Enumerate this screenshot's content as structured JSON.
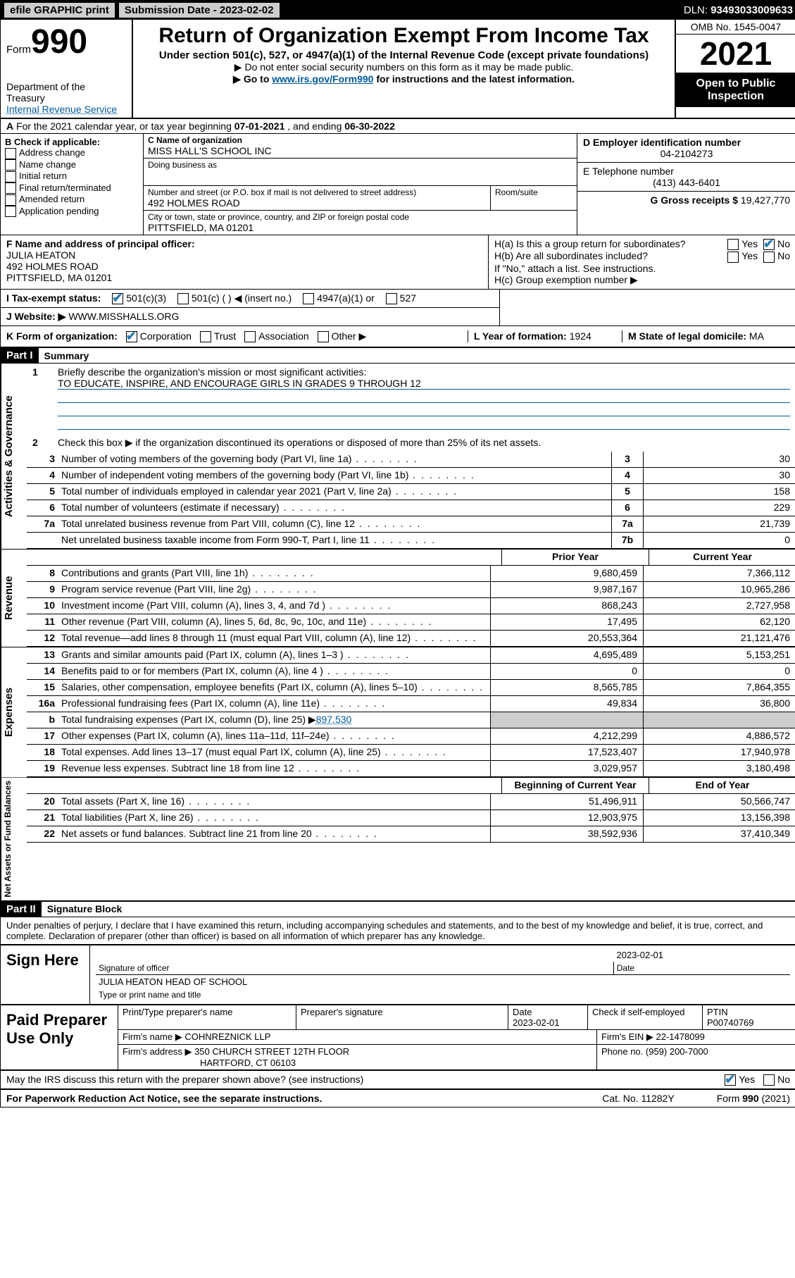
{
  "topbar": {
    "efile": "efile GRAPHIC print",
    "submission_label": "Submission Date - ",
    "submission_date": "2023-02-02",
    "dln_label": "DLN: ",
    "dln": "93493033009633"
  },
  "header": {
    "form_label": "Form",
    "form_number": "990",
    "dept": "Department of the Treasury",
    "irs": "Internal Revenue Service",
    "title": "Return of Organization Exempt From Income Tax",
    "subtitle": "Under section 501(c), 527, or 4947(a)(1) of the Internal Revenue Code (except private foundations)",
    "note1": "Do not enter social security numbers on this form as it may be made public.",
    "note2_pre": "Go to ",
    "note2_link": "www.irs.gov/Form990",
    "note2_post": " for instructions and the latest information.",
    "omb": "OMB No. 1545-0047",
    "year": "2021",
    "inspect": "Open to Public Inspection"
  },
  "line_a": {
    "prefix": "A",
    "text": " For the 2021 calendar year, or tax year beginning ",
    "begin": "07-01-2021",
    "mid": " , and ending ",
    "end": "06-30-2022"
  },
  "box_b": {
    "title": "B Check if applicable:",
    "items": [
      "Address change",
      "Name change",
      "Initial return",
      "Final return/terminated",
      "Amended return",
      "Application pending"
    ]
  },
  "box_c": {
    "name_label": "C Name of organization",
    "name": "MISS HALL'S SCHOOL INC",
    "dba_label": "Doing business as",
    "dba": "",
    "street_label": "Number and street (or P.O. box if mail is not delivered to street address)",
    "room_label": "Room/suite",
    "street": "492 HOLMES ROAD",
    "city_label": "City or town, state or province, country, and ZIP or foreign postal code",
    "city": "PITTSFIELD, MA  01201"
  },
  "box_d": {
    "label": "D Employer identification number",
    "val": "04-2104273"
  },
  "box_e": {
    "label": "E Telephone number",
    "val": "(413) 443-6401"
  },
  "box_g": {
    "label": "G Gross receipts $ ",
    "val": "19,427,770"
  },
  "box_f": {
    "label": "F Name and address of principal officer:",
    "name": "JULIA HEATON",
    "street": "492 HOLMES ROAD",
    "city": "PITTSFIELD, MA  01201"
  },
  "box_h": {
    "ha": "H(a)  Is this a group return for subordinates?",
    "hb": "H(b)  Are all subordinates included?",
    "hb_note": "If \"No,\" attach a list. See instructions.",
    "hc": "H(c)  Group exemption number ▶",
    "yes": "Yes",
    "no": "No"
  },
  "line_i": {
    "label": "I   Tax-exempt status:",
    "opts": [
      "501(c)(3)",
      "501(c) (   ) ◀ (insert no.)",
      "4947(a)(1) or",
      "527"
    ]
  },
  "line_j": {
    "label": "J   Website: ▶ ",
    "val": "WWW.MISSHALLS.ORG"
  },
  "line_k": {
    "label": "K Form of organization:",
    "opts": [
      "Corporation",
      "Trust",
      "Association",
      "Other ▶"
    ]
  },
  "line_l": {
    "label": "L Year of formation: ",
    "val": "1924"
  },
  "line_m": {
    "label": "M State of legal domicile: ",
    "val": "MA"
  },
  "part1": {
    "header": "Part I",
    "title": "Summary",
    "q1_label": "1",
    "q1_text": "Briefly describe the organization's mission or most significant activities:",
    "q1_val": "TO EDUCATE, INSPIRE, AND ENCOURAGE GIRLS IN GRADES 9 THROUGH 12",
    "q2_label": "2",
    "q2_text": "Check this box ▶        if the organization discontinued its operations or disposed of more than 25% of its net assets."
  },
  "gov_lines": [
    {
      "n": "3",
      "d": "Number of voting members of the governing body (Part VI, line 1a)",
      "b": "3",
      "v": "30"
    },
    {
      "n": "4",
      "d": "Number of independent voting members of the governing body (Part VI, line 1b)",
      "b": "4",
      "v": "30"
    },
    {
      "n": "5",
      "d": "Total number of individuals employed in calendar year 2021 (Part V, line 2a)",
      "b": "5",
      "v": "158"
    },
    {
      "n": "6",
      "d": "Total number of volunteers (estimate if necessary)",
      "b": "6",
      "v": "229"
    },
    {
      "n": "7a",
      "d": "Total unrelated business revenue from Part VIII, column (C), line 12",
      "b": "7a",
      "v": "21,739"
    },
    {
      "n": "",
      "d": "Net unrelated business taxable income from Form 990-T, Part I, line 11",
      "b": "7b",
      "v": "0"
    }
  ],
  "col_headers": {
    "prior": "Prior Year",
    "current": "Current Year",
    "begin": "Beginning of Current Year",
    "end": "End of Year"
  },
  "revenue_lines": [
    {
      "n": "8",
      "d": "Contributions and grants (Part VIII, line 1h)",
      "p": "9,680,459",
      "c": "7,366,112"
    },
    {
      "n": "9",
      "d": "Program service revenue (Part VIII, line 2g)",
      "p": "9,987,167",
      "c": "10,965,286"
    },
    {
      "n": "10",
      "d": "Investment income (Part VIII, column (A), lines 3, 4, and 7d )",
      "p": "868,243",
      "c": "2,727,958"
    },
    {
      "n": "11",
      "d": "Other revenue (Part VIII, column (A), lines 5, 6d, 8c, 9c, 10c, and 11e)",
      "p": "17,495",
      "c": "62,120"
    },
    {
      "n": "12",
      "d": "Total revenue—add lines 8 through 11 (must equal Part VIII, column (A), line 12)",
      "p": "20,553,364",
      "c": "21,121,476"
    }
  ],
  "expense_lines": [
    {
      "n": "13",
      "d": "Grants and similar amounts paid (Part IX, column (A), lines 1–3 )",
      "p": "4,695,489",
      "c": "5,153,251"
    },
    {
      "n": "14",
      "d": "Benefits paid to or for members (Part IX, column (A), line 4 )",
      "p": "0",
      "c": "0"
    },
    {
      "n": "15",
      "d": "Salaries, other compensation, employee benefits (Part IX, column (A), lines 5–10)",
      "p": "8,565,785",
      "c": "7,864,355"
    },
    {
      "n": "16a",
      "d": "Professional fundraising fees (Part IX, column (A), line 11e)",
      "p": "49,834",
      "c": "36,800"
    }
  ],
  "line16b": {
    "n": "b",
    "d": "Total fundraising expenses (Part IX, column (D), line 25) ▶",
    "v": "897,530"
  },
  "expense_lines2": [
    {
      "n": "17",
      "d": "Other expenses (Part IX, column (A), lines 11a–11d, 11f–24e)",
      "p": "4,212,299",
      "c": "4,886,572"
    },
    {
      "n": "18",
      "d": "Total expenses. Add lines 13–17 (must equal Part IX, column (A), line 25)",
      "p": "17,523,407",
      "c": "17,940,978"
    },
    {
      "n": "19",
      "d": "Revenue less expenses. Subtract line 18 from line 12",
      "p": "3,029,957",
      "c": "3,180,498"
    }
  ],
  "net_lines": [
    {
      "n": "20",
      "d": "Total assets (Part X, line 16)",
      "p": "51,496,911",
      "c": "50,566,747"
    },
    {
      "n": "21",
      "d": "Total liabilities (Part X, line 26)",
      "p": "12,903,975",
      "c": "13,156,398"
    },
    {
      "n": "22",
      "d": "Net assets or fund balances. Subtract line 21 from line 20",
      "p": "38,592,936",
      "c": "37,410,349"
    }
  ],
  "part2": {
    "header": "Part II",
    "title": "Signature Block",
    "declaration": "Under penalties of perjury, I declare that I have examined this return, including accompanying schedules and statements, and to the best of my knowledge and belief, it is true, correct, and complete. Declaration of preparer (other than officer) is based on all information of which preparer has any knowledge."
  },
  "sign": {
    "here": "Sign Here",
    "sig_label": "Signature of officer",
    "date_label": "Date",
    "date": "2023-02-01",
    "name": "JULIA HEATON HEAD OF SCHOOL",
    "name_label": "Type or print name and title"
  },
  "paid": {
    "title": "Paid Preparer Use Only",
    "h1": "Print/Type preparer's name",
    "h2": "Preparer's signature",
    "h3": "Date",
    "date": "2023-02-01",
    "h4": "Check        if self-employed",
    "h5": "PTIN",
    "ptin": "P00740769",
    "firm_label": "Firm's name    ▶",
    "firm": "COHNREZNICK LLP",
    "ein_label": "Firm's EIN ▶ ",
    "ein": "22-1478099",
    "addr_label": "Firm's address ▶",
    "addr1": "350 CHURCH STREET 12TH FLOOR",
    "addr2": "HARTFORD, CT  06103",
    "phone_label": "Phone no. ",
    "phone": "(959) 200-7000"
  },
  "footer": {
    "q": "May the IRS discuss this return with the preparer shown above? (see instructions)",
    "yes": "Yes",
    "no": "No",
    "pra": "For Paperwork Reduction Act Notice, see the separate instructions.",
    "cat": "Cat. No. 11282Y",
    "form": "Form 990 (2021)"
  }
}
